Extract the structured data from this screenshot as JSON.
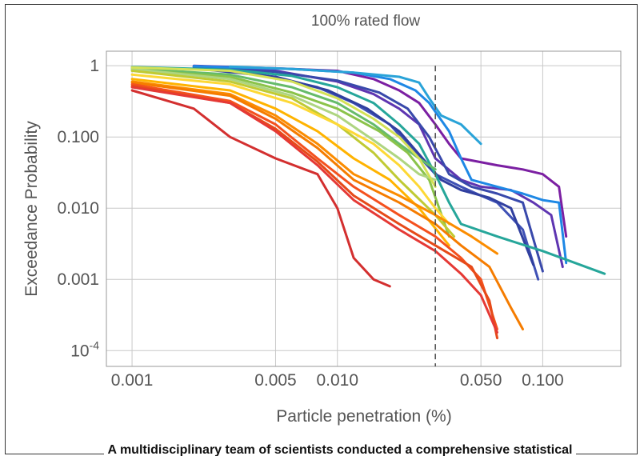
{
  "caption": "A multidisciplinary team of scientists conducted a comprehensive statistical",
  "chart_data": {
    "type": "line",
    "title": "100% rated flow",
    "xlabel": "Particle penetration (%)",
    "ylabel": "Exceedance Probability",
    "xscale": "log",
    "yscale": "log",
    "xlim": [
      0.00075,
      0.24
    ],
    "ylim": [
      6e-05,
      1.6
    ],
    "grid": true,
    "x_ticks": [
      {
        "value": 0.001,
        "label": "0.001"
      },
      {
        "value": 0.005,
        "label": "0.005"
      },
      {
        "value": 0.01,
        "label": "0.010"
      },
      {
        "value": 0.05,
        "label": "0.050"
      },
      {
        "value": 0.1,
        "label": "0.100"
      }
    ],
    "y_ticks": [
      {
        "value": 1,
        "label": "1"
      },
      {
        "value": 0.1,
        "label": "0.100"
      },
      {
        "value": 0.01,
        "label": "0.010"
      },
      {
        "value": 0.001,
        "label": "0.001"
      },
      {
        "value": 0.0001,
        "label": "10",
        "sup": "-4"
      }
    ],
    "reference_line": {
      "x": 0.03,
      "style": "dashed",
      "color": "#555555"
    },
    "series": [
      {
        "color": "#7b1fa2",
        "x": [
          0.002,
          0.005,
          0.01,
          0.015,
          0.02,
          0.025,
          0.03,
          0.035,
          0.04,
          0.06,
          0.08,
          0.1,
          0.12,
          0.13
        ],
        "y": [
          1,
          0.92,
          0.85,
          0.65,
          0.45,
          0.3,
          0.15,
          0.08,
          0.05,
          0.04,
          0.035,
          0.03,
          0.02,
          0.004
        ]
      },
      {
        "color": "#5e35b1",
        "x": [
          0.002,
          0.005,
          0.01,
          0.015,
          0.02,
          0.025,
          0.03,
          0.04,
          0.05,
          0.07,
          0.09,
          0.11,
          0.125
        ],
        "y": [
          0.98,
          0.85,
          0.6,
          0.4,
          0.25,
          0.15,
          0.05,
          0.025,
          0.02,
          0.018,
          0.012,
          0.008,
          0.0015
        ]
      },
      {
        "color": "#3f51b5",
        "x": [
          0.002,
          0.004,
          0.008,
          0.012,
          0.018,
          0.024,
          0.03,
          0.04,
          0.05,
          0.06,
          0.08,
          0.095
        ],
        "y": [
          0.95,
          0.78,
          0.5,
          0.3,
          0.15,
          0.06,
          0.03,
          0.02,
          0.015,
          0.012,
          0.005,
          0.001
        ]
      },
      {
        "color": "#303f9f",
        "x": [
          0.002,
          0.005,
          0.009,
          0.014,
          0.02,
          0.026,
          0.032,
          0.04,
          0.055,
          0.07,
          0.09
        ],
        "y": [
          0.92,
          0.7,
          0.45,
          0.25,
          0.12,
          0.05,
          0.025,
          0.018,
          0.014,
          0.01,
          0.0016
        ]
      },
      {
        "color": "#3949ab",
        "x": [
          0.002,
          0.005,
          0.01,
          0.016,
          0.022,
          0.028,
          0.035,
          0.045,
          0.06,
          0.08,
          0.1
        ],
        "y": [
          0.96,
          0.82,
          0.62,
          0.42,
          0.25,
          0.1,
          0.03,
          0.02,
          0.016,
          0.012,
          0.0013
        ]
      },
      {
        "color": "#1e88e5",
        "x": [
          0.002,
          0.006,
          0.012,
          0.018,
          0.024,
          0.028,
          0.035,
          0.04,
          0.045,
          0.06,
          0.08,
          0.1,
          0.12,
          0.13
        ],
        "y": [
          0.99,
          0.9,
          0.8,
          0.65,
          0.45,
          0.3,
          0.12,
          0.05,
          0.025,
          0.02,
          0.016,
          0.013,
          0.012,
          0.0017
        ]
      },
      {
        "color": "#29a3d8",
        "x": [
          0.003,
          0.006,
          0.012,
          0.02,
          0.025,
          0.028,
          0.032,
          0.04,
          0.05
        ],
        "y": [
          0.97,
          0.9,
          0.8,
          0.7,
          0.58,
          0.35,
          0.2,
          0.15,
          0.08
        ]
      },
      {
        "color": "#26a69a",
        "x": [
          0.001,
          0.003,
          0.006,
          0.01,
          0.015,
          0.02,
          0.025,
          0.03,
          0.035,
          0.04,
          0.06,
          0.1,
          0.2
        ],
        "y": [
          0.96,
          0.88,
          0.72,
          0.5,
          0.3,
          0.15,
          0.08,
          0.03,
          0.012,
          0.006,
          0.004,
          0.0025,
          0.0012
        ]
      },
      {
        "color": "#66bb6a",
        "x": [
          0.001,
          0.003,
          0.006,
          0.01,
          0.015,
          0.02,
          0.025,
          0.03
        ],
        "y": [
          0.92,
          0.75,
          0.5,
          0.3,
          0.15,
          0.08,
          0.05,
          0.035
        ]
      },
      {
        "color": "#8bc34a",
        "x": [
          0.001,
          0.003,
          0.006,
          0.01,
          0.016,
          0.022,
          0.028,
          0.035
        ],
        "y": [
          0.88,
          0.7,
          0.42,
          0.25,
          0.12,
          0.06,
          0.025,
          0.004
        ]
      },
      {
        "color": "#aed581",
        "x": [
          0.001,
          0.003,
          0.006,
          0.01,
          0.015,
          0.02,
          0.025,
          0.03
        ],
        "y": [
          0.9,
          0.65,
          0.38,
          0.2,
          0.09,
          0.05,
          0.03,
          0.025
        ]
      },
      {
        "color": "#c0ca33",
        "x": [
          0.001,
          0.003,
          0.006,
          0.01,
          0.015,
          0.02,
          0.026,
          0.03,
          0.037
        ],
        "y": [
          0.85,
          0.6,
          0.35,
          0.15,
          0.06,
          0.025,
          0.012,
          0.008,
          0.004
        ]
      },
      {
        "color": "#d4e157",
        "x": [
          0.001,
          0.003,
          0.006,
          0.01,
          0.015,
          0.02,
          0.025,
          0.03
        ],
        "y": [
          0.95,
          0.85,
          0.6,
          0.35,
          0.18,
          0.1,
          0.05,
          0.02
        ]
      },
      {
        "color": "#fdd835",
        "x": [
          0.001,
          0.003,
          0.006,
          0.01,
          0.015,
          0.02,
          0.025,
          0.03,
          0.035
        ],
        "y": [
          0.75,
          0.55,
          0.3,
          0.15,
          0.08,
          0.04,
          0.02,
          0.01,
          0.006
        ]
      },
      {
        "color": "#ffb300",
        "x": [
          0.001,
          0.003,
          0.005,
          0.008,
          0.012,
          0.018,
          0.025,
          0.035
        ],
        "y": [
          0.65,
          0.45,
          0.25,
          0.12,
          0.05,
          0.025,
          0.01,
          0.003
        ]
      },
      {
        "color": "#fb8c00",
        "x": [
          0.001,
          0.003,
          0.005,
          0.008,
          0.012,
          0.02,
          0.03,
          0.045,
          0.06
        ],
        "y": [
          0.6,
          0.4,
          0.2,
          0.08,
          0.03,
          0.015,
          0.008,
          0.004,
          0.0023
        ]
      },
      {
        "color": "#f57c00",
        "x": [
          0.001,
          0.003,
          0.005,
          0.008,
          0.012,
          0.02,
          0.03,
          0.04,
          0.055,
          0.07,
          0.08
        ],
        "y": [
          0.58,
          0.38,
          0.18,
          0.07,
          0.025,
          0.012,
          0.006,
          0.003,
          0.0015,
          0.0004,
          0.0002
        ]
      },
      {
        "color": "#f4511e",
        "x": [
          0.001,
          0.003,
          0.005,
          0.008,
          0.012,
          0.02,
          0.03,
          0.04,
          0.05,
          0.06
        ],
        "y": [
          0.55,
          0.32,
          0.15,
          0.05,
          0.02,
          0.008,
          0.004,
          0.002,
          0.001,
          0.0002
        ]
      },
      {
        "color": "#e64a19",
        "x": [
          0.001,
          0.003,
          0.005,
          0.008,
          0.012,
          0.02,
          0.03,
          0.045,
          0.055,
          0.06
        ],
        "y": [
          0.52,
          0.3,
          0.13,
          0.045,
          0.015,
          0.006,
          0.003,
          0.0015,
          0.0005,
          0.00015
        ]
      },
      {
        "color": "#e53935",
        "x": [
          0.001,
          0.003,
          0.005,
          0.008,
          0.012,
          0.02,
          0.03,
          0.04,
          0.05,
          0.06
        ],
        "y": [
          0.5,
          0.3,
          0.12,
          0.04,
          0.013,
          0.005,
          0.0025,
          0.0012,
          0.0006,
          0.00018
        ]
      },
      {
        "color": "#d32f2f",
        "x": [
          0.001,
          0.002,
          0.003,
          0.005,
          0.008,
          0.01,
          0.012,
          0.015,
          0.018
        ],
        "y": [
          0.45,
          0.25,
          0.1,
          0.05,
          0.03,
          0.01,
          0.002,
          0.001,
          0.0008
        ]
      }
    ]
  }
}
